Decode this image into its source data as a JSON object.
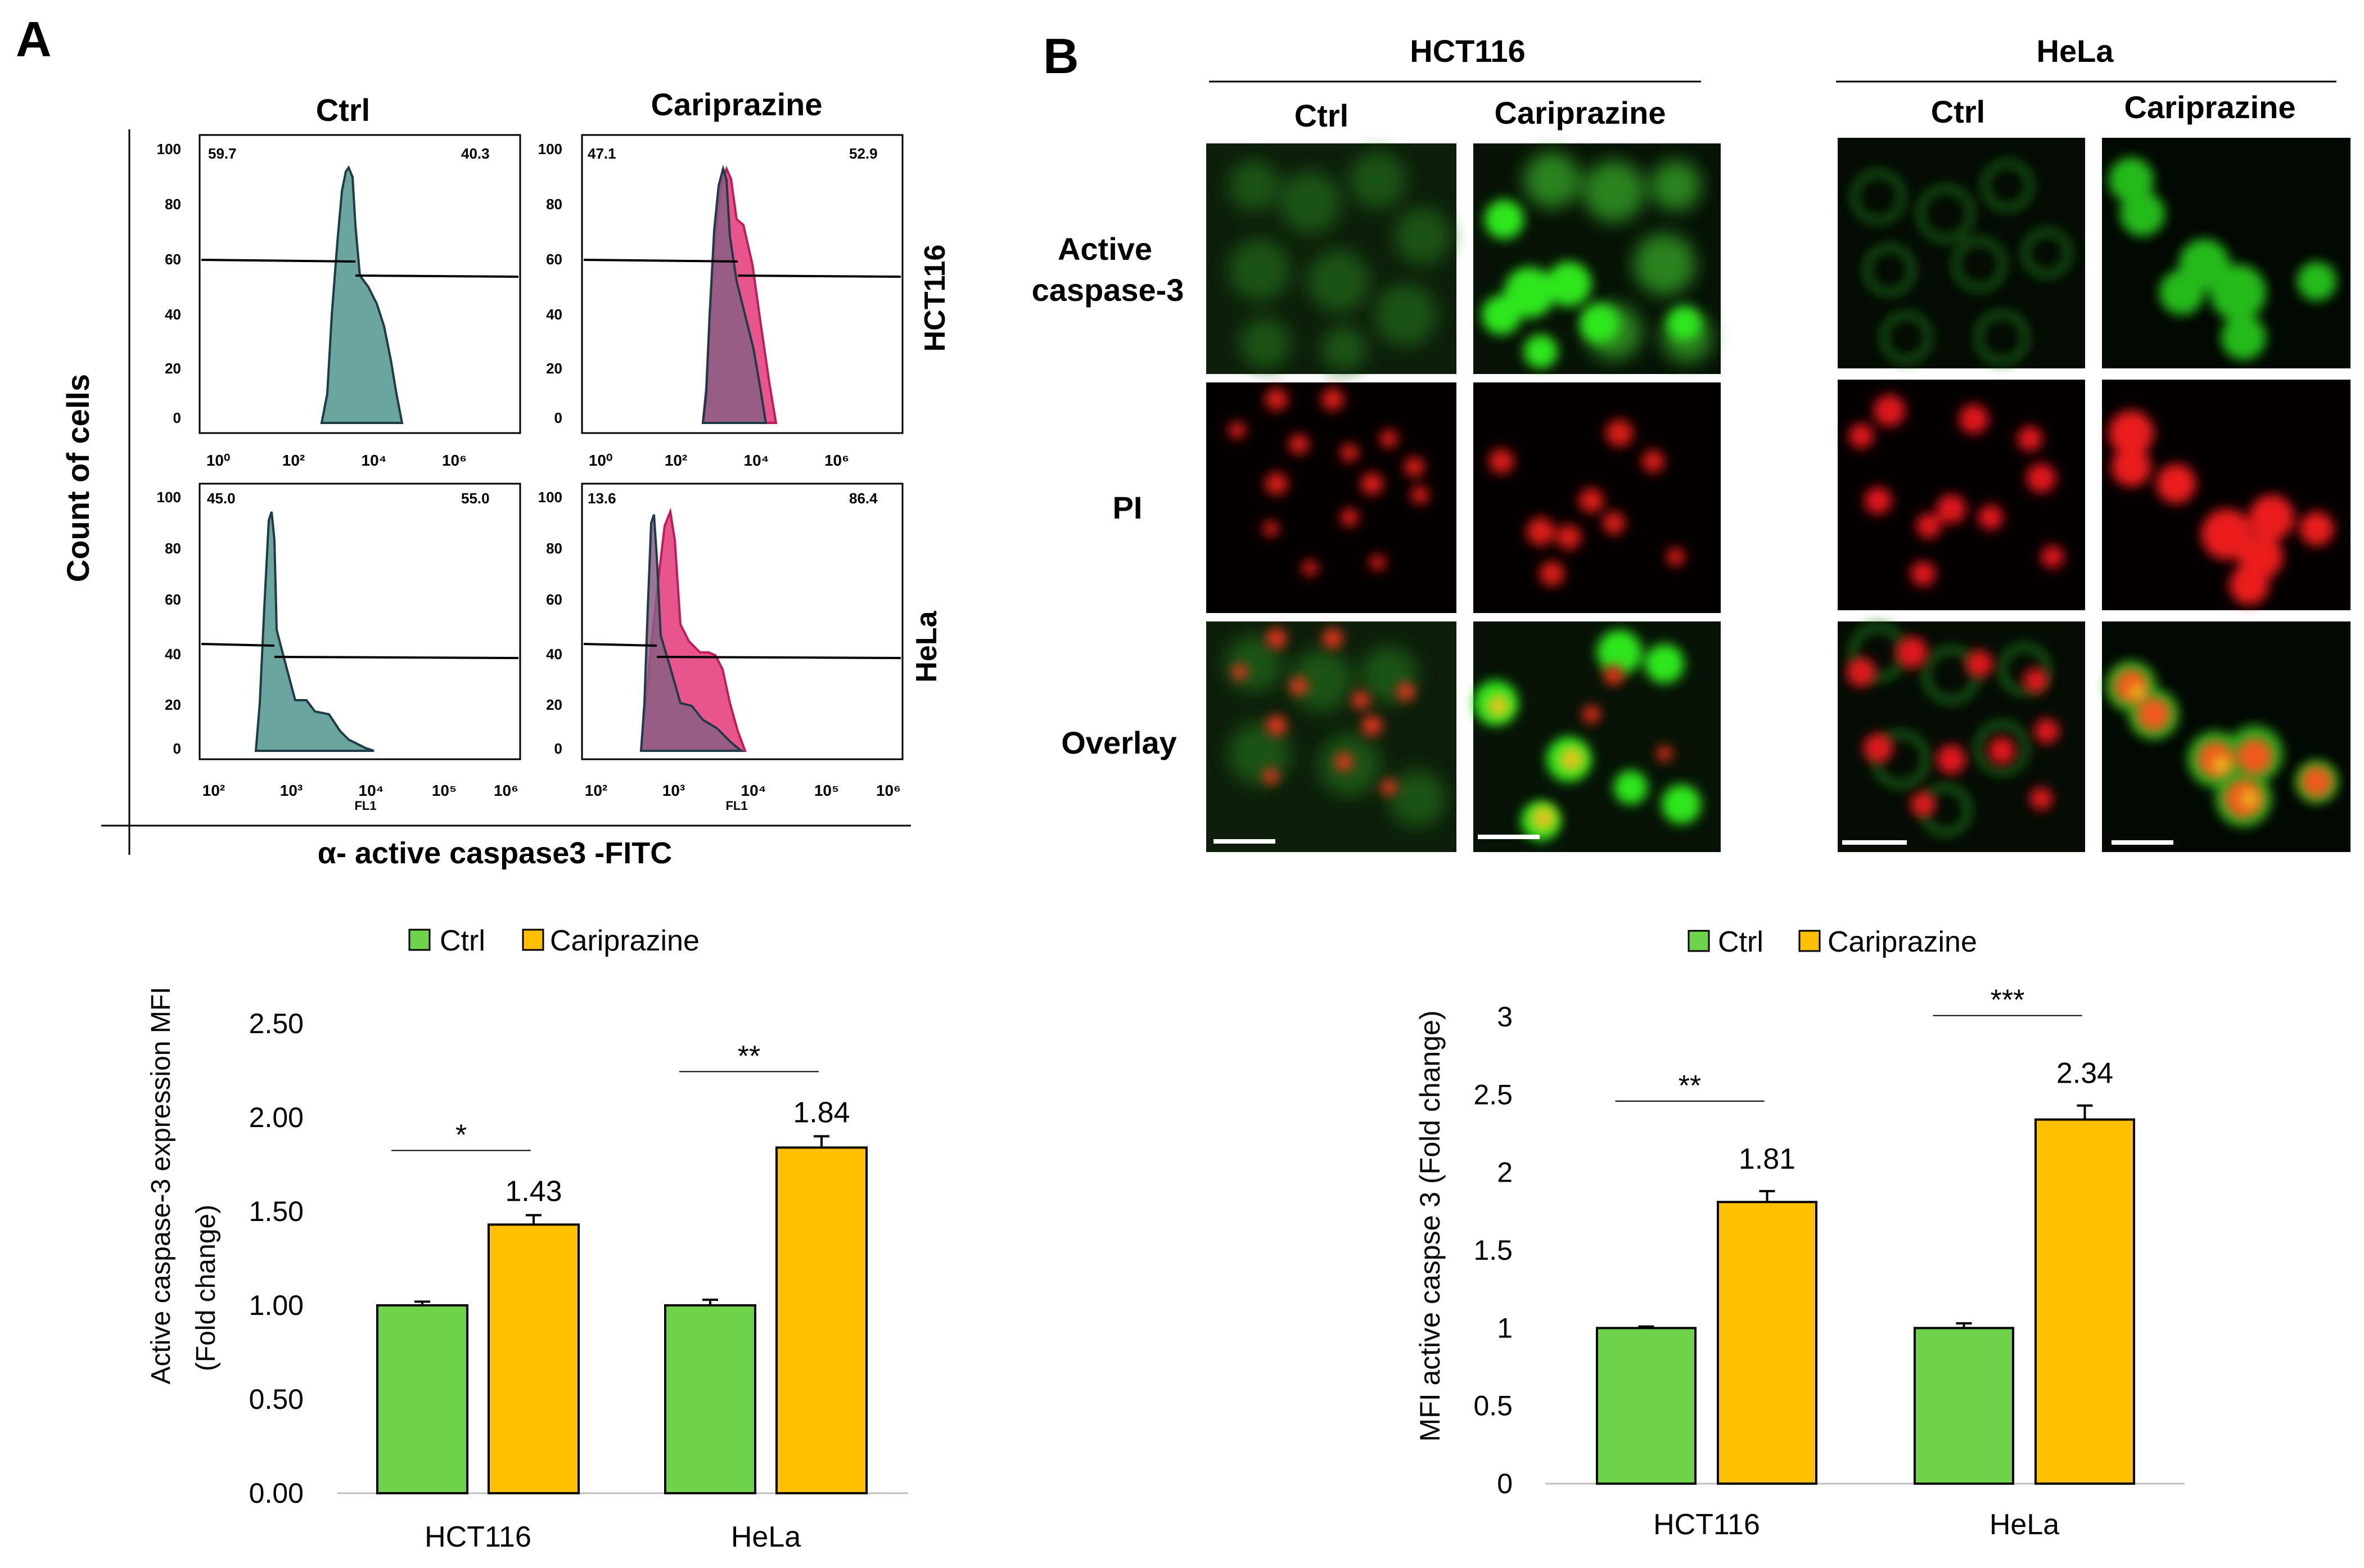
{
  "panel_labels": {
    "a": "A",
    "b": "B"
  },
  "flow": {
    "y_axis_label": "Count of cells",
    "x_axis_label": "α- active caspase3 -FITC",
    "col_headers": [
      "Ctrl",
      "Cariprazine"
    ],
    "row_labels": [
      "HCT116",
      "HeLa"
    ],
    "fl1_label": "FL1",
    "panels": [
      {
        "left": "59.7",
        "right": "40.3"
      },
      {
        "left": "47.1",
        "right": "52.9"
      },
      {
        "left": "45.0",
        "right": "55.0"
      },
      {
        "left": "13.6",
        "right": "86.4"
      }
    ],
    "y_ticks_top": [
      "0",
      "20",
      "40",
      "60",
      "80",
      "100"
    ],
    "y_ticks_bottom": [
      "0",
      "20",
      "40",
      "60",
      "80",
      "100"
    ],
    "x_ticks_top": [
      "10⁰",
      "10²",
      "10⁴",
      "10⁶"
    ],
    "x_ticks_bottom": [
      "10²",
      "10³",
      "10⁴",
      "10⁵",
      "10⁶"
    ],
    "colors": {
      "ctrl_fill": "#6aa5a0",
      "cari_fill": "#e8558d"
    }
  },
  "micro": {
    "groups": [
      "HCT116",
      "HeLa"
    ],
    "cols": [
      "Ctrl",
      "Cariprazine"
    ],
    "rows": [
      "Active\ncaspase-3",
      "PI",
      "Overlay"
    ],
    "row_label_active_1": "Active",
    "row_label_active_2": "caspase-3",
    "row_label_pi": "PI",
    "row_label_overlay": "Overlay"
  },
  "chart_data": [
    {
      "type": "bar",
      "title": "",
      "categories": [
        "HCT116",
        "HeLa"
      ],
      "series": [
        {
          "name": "Ctrl",
          "values": [
            1.0,
            1.0
          ],
          "errors": [
            0.02,
            0.03
          ],
          "color": "#6fd24b"
        },
        {
          "name": "Cariprazine",
          "values": [
            1.43,
            1.84
          ],
          "errors": [
            0.05,
            0.06
          ],
          "color": "#ffc000"
        }
      ],
      "value_labels": [
        "1.43",
        "1.84"
      ],
      "significance": [
        "*",
        "**"
      ],
      "ylabel_line1": "Active caspase-3 expression MFI",
      "ylabel_line2": "(Fold change)",
      "xlabel": "",
      "ylim": [
        0,
        2.5
      ],
      "y_ticks": [
        "0.00",
        "0.50",
        "1.00",
        "1.50",
        "2.00",
        "2.50"
      ],
      "legend": "top-center"
    },
    {
      "type": "bar",
      "title": "",
      "categories": [
        "HCT116",
        "HeLa"
      ],
      "series": [
        {
          "name": "Ctrl",
          "values": [
            1.0,
            1.0
          ],
          "errors": [
            0.01,
            0.03
          ],
          "color": "#6fd24b"
        },
        {
          "name": "Cariprazine",
          "values": [
            1.81,
            2.34
          ],
          "errors": [
            0.07,
            0.09
          ],
          "color": "#ffc000"
        }
      ],
      "value_labels": [
        "1.81",
        "2.34"
      ],
      "significance": [
        "**",
        "***"
      ],
      "ylabel_line1": "MFI active caspse 3 (Fold change)",
      "ylabel_line2": "",
      "xlabel": "",
      "ylim": [
        0,
        3
      ],
      "y_ticks": [
        "0",
        "0.5",
        "1",
        "1.5",
        "2",
        "2.5",
        "3"
      ],
      "legend": "top-center"
    }
  ]
}
